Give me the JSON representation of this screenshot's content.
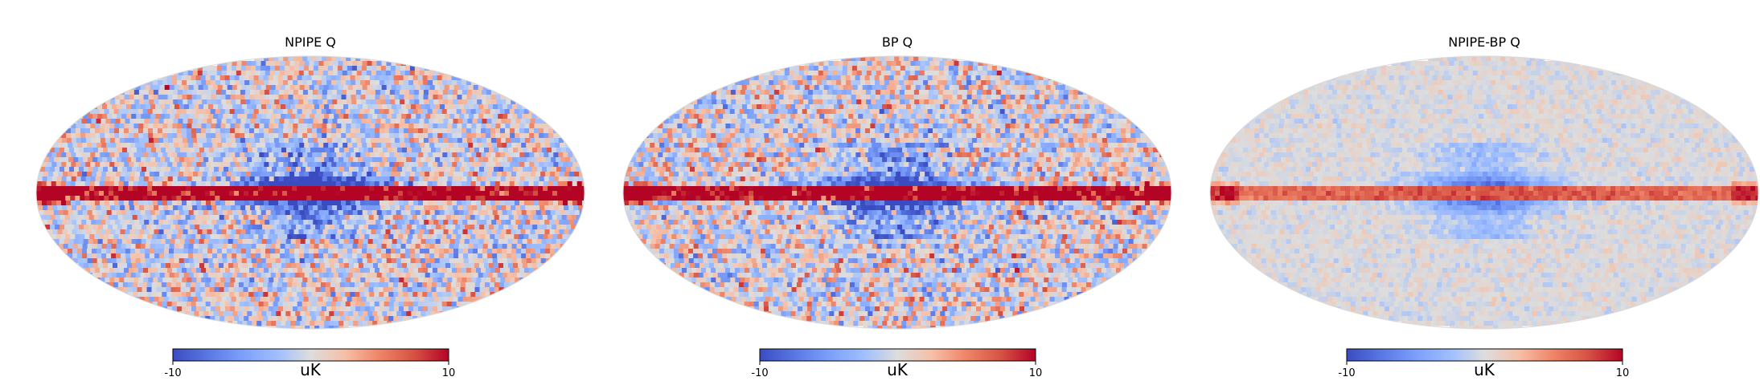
{
  "figure": {
    "colormap": "coolwarm",
    "colors": {
      "low": "#3b4cc0",
      "mid": "#dddddd",
      "high": "#b40426",
      "outline": "#d9d9d9"
    },
    "panels": [
      {
        "title": "NPIPE Q",
        "projection": "mollweide",
        "colorbar": {
          "min": "-10",
          "max": "10",
          "unit": "uK"
        },
        "noise_amplitude": 0.5,
        "band_strength": 1.0
      },
      {
        "title": "BP Q",
        "projection": "mollweide",
        "colorbar": {
          "min": "-10",
          "max": "10",
          "unit": "uK"
        },
        "noise_amplitude": 0.5,
        "band_strength": 1.0
      },
      {
        "title": "NPIPE-BP Q",
        "projection": "mollweide",
        "colorbar": {
          "min": "-10",
          "max": "10",
          "unit": "uK"
        },
        "noise_amplitude": 0.12,
        "band_strength": 0.55
      }
    ]
  }
}
